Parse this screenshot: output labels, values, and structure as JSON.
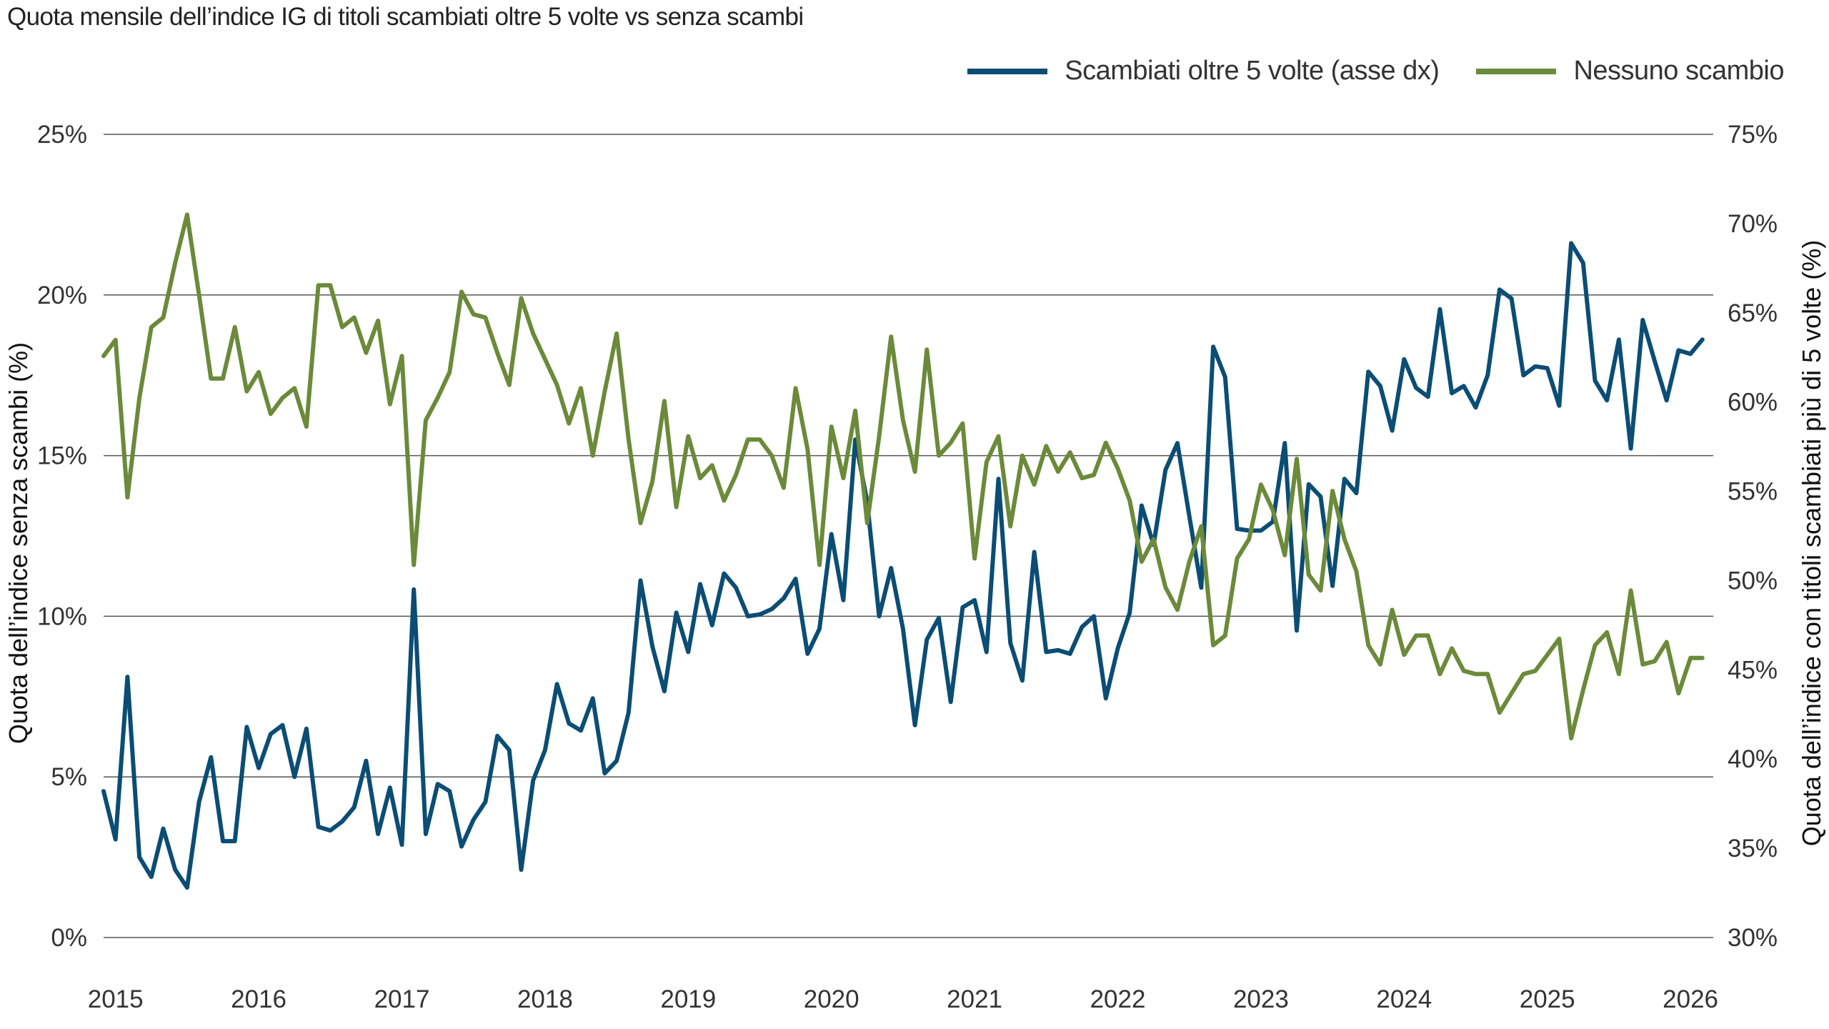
{
  "chart_data": {
    "type": "line",
    "title": "Quota mensile dell’indice IG di titoli scambiati oltre 5 volte vs senza scambi",
    "ylabel_left": "Quota dell’indice senza scambi (%)",
    "ylabel_right": "Quota dell’indice con titoli scambiati più di 5 volte (%)",
    "ylim_left": [
      0,
      25
    ],
    "ylim_right": [
      30,
      75
    ],
    "yticks_left": [
      "0%",
      "5%",
      "10%",
      "15%",
      "20%",
      "25%"
    ],
    "yticks_right": [
      "30%",
      "35%",
      "40%",
      "45%",
      "50%",
      "55%",
      "60%",
      "65%",
      "70%",
      "75%"
    ],
    "xticks": [
      "2015",
      "2016",
      "2017",
      "2018",
      "2019",
      "2020",
      "2021",
      "2022",
      "2023",
      "2024",
      "2025",
      "2026"
    ],
    "grid": true,
    "legend_position": "top-right",
    "series": [
      {
        "name": "Scambiati oltre 5 volte (asse dx)",
        "axis": "right",
        "color": "#0b4d74",
        "start": "2015-01",
        "values": [
          38.2,
          35.5,
          44.6,
          34.5,
          33.4,
          36.1,
          33.8,
          32.8,
          37.6,
          40.1,
          35.4,
          35.4,
          41.8,
          39.5,
          41.4,
          41.9,
          39.0,
          41.7,
          36.2,
          36.0,
          36.5,
          37.3,
          39.9,
          35.8,
          38.4,
          35.2,
          49.5,
          35.8,
          38.6,
          38.2,
          35.1,
          36.6,
          37.6,
          41.3,
          40.5,
          33.8,
          38.8,
          40.5,
          44.2,
          42.0,
          41.6,
          43.4,
          39.2,
          39.9,
          42.6,
          50.0,
          46.3,
          43.8,
          48.2,
          46.0,
          49.8,
          47.5,
          50.4,
          49.6,
          48.0,
          48.1,
          48.4,
          49.0,
          50.1,
          45.9,
          47.3,
          52.6,
          48.9,
          57.9,
          54.4,
          48.0,
          50.7,
          47.3,
          41.9,
          46.7,
          47.9,
          43.2,
          48.5,
          48.9,
          46.0,
          55.7,
          46.5,
          44.4,
          51.6,
          46.0,
          46.1,
          45.9,
          47.4,
          48.0,
          43.4,
          46.2,
          48.2,
          54.2,
          52.0,
          56.2,
          57.7,
          53.6,
          49.6,
          63.1,
          61.4,
          52.9,
          52.8,
          52.8,
          53.3,
          57.7,
          47.2,
          55.4,
          54.7,
          49.7,
          55.7,
          54.9,
          61.7,
          60.9,
          58.4,
          62.4,
          60.8,
          60.3,
          65.2,
          60.5,
          60.9,
          59.7,
          61.5,
          66.3,
          65.8,
          61.5,
          62.0,
          61.9,
          59.8,
          68.9,
          67.8,
          61.2,
          60.1,
          63.5,
          57.4,
          64.6,
          62.3,
          60.1,
          62.9,
          62.7,
          63.5
        ]
      },
      {
        "name": "Nessuno scambio",
        "axis": "left",
        "color": "#6b8a3a",
        "start": "2015-01",
        "values": [
          18.1,
          18.6,
          13.7,
          16.8,
          19.0,
          19.3,
          21.0,
          22.5,
          20.0,
          17.4,
          17.4,
          19.0,
          17.0,
          17.6,
          16.3,
          16.8,
          17.1,
          15.9,
          20.3,
          20.3,
          19.0,
          19.3,
          18.2,
          19.2,
          16.6,
          18.1,
          11.6,
          16.1,
          16.8,
          17.6,
          20.1,
          19.4,
          19.3,
          18.2,
          17.2,
          19.9,
          18.8,
          18.0,
          17.2,
          16.0,
          17.1,
          15.0,
          17.0,
          18.8,
          15.5,
          12.9,
          14.2,
          16.7,
          13.4,
          15.6,
          14.3,
          14.7,
          13.6,
          14.4,
          15.5,
          15.5,
          15.0,
          14.0,
          17.1,
          15.2,
          11.6,
          15.9,
          14.3,
          16.4,
          12.9,
          15.6,
          18.7,
          16.1,
          14.5,
          18.3,
          15.0,
          15.4,
          16.0,
          11.8,
          14.8,
          15.6,
          12.8,
          15.0,
          14.1,
          15.3,
          14.5,
          15.1,
          14.3,
          14.4,
          15.4,
          14.6,
          13.6,
          11.7,
          12.4,
          10.9,
          10.2,
          11.7,
          12.8,
          9.1,
          9.4,
          11.8,
          12.4,
          14.1,
          13.3,
          11.9,
          14.9,
          11.3,
          10.8,
          13.9,
          12.4,
          11.4,
          9.1,
          8.5,
          10.2,
          8.8,
          9.4,
          9.4,
          8.2,
          9.0,
          8.3,
          8.2,
          8.2,
          7.0,
          7.6,
          8.2,
          8.3,
          8.8,
          9.3,
          6.2,
          7.7,
          9.1,
          9.5,
          8.2,
          10.8,
          8.5,
          8.6,
          9.2,
          7.6,
          8.7,
          8.7
        ]
      }
    ]
  }
}
